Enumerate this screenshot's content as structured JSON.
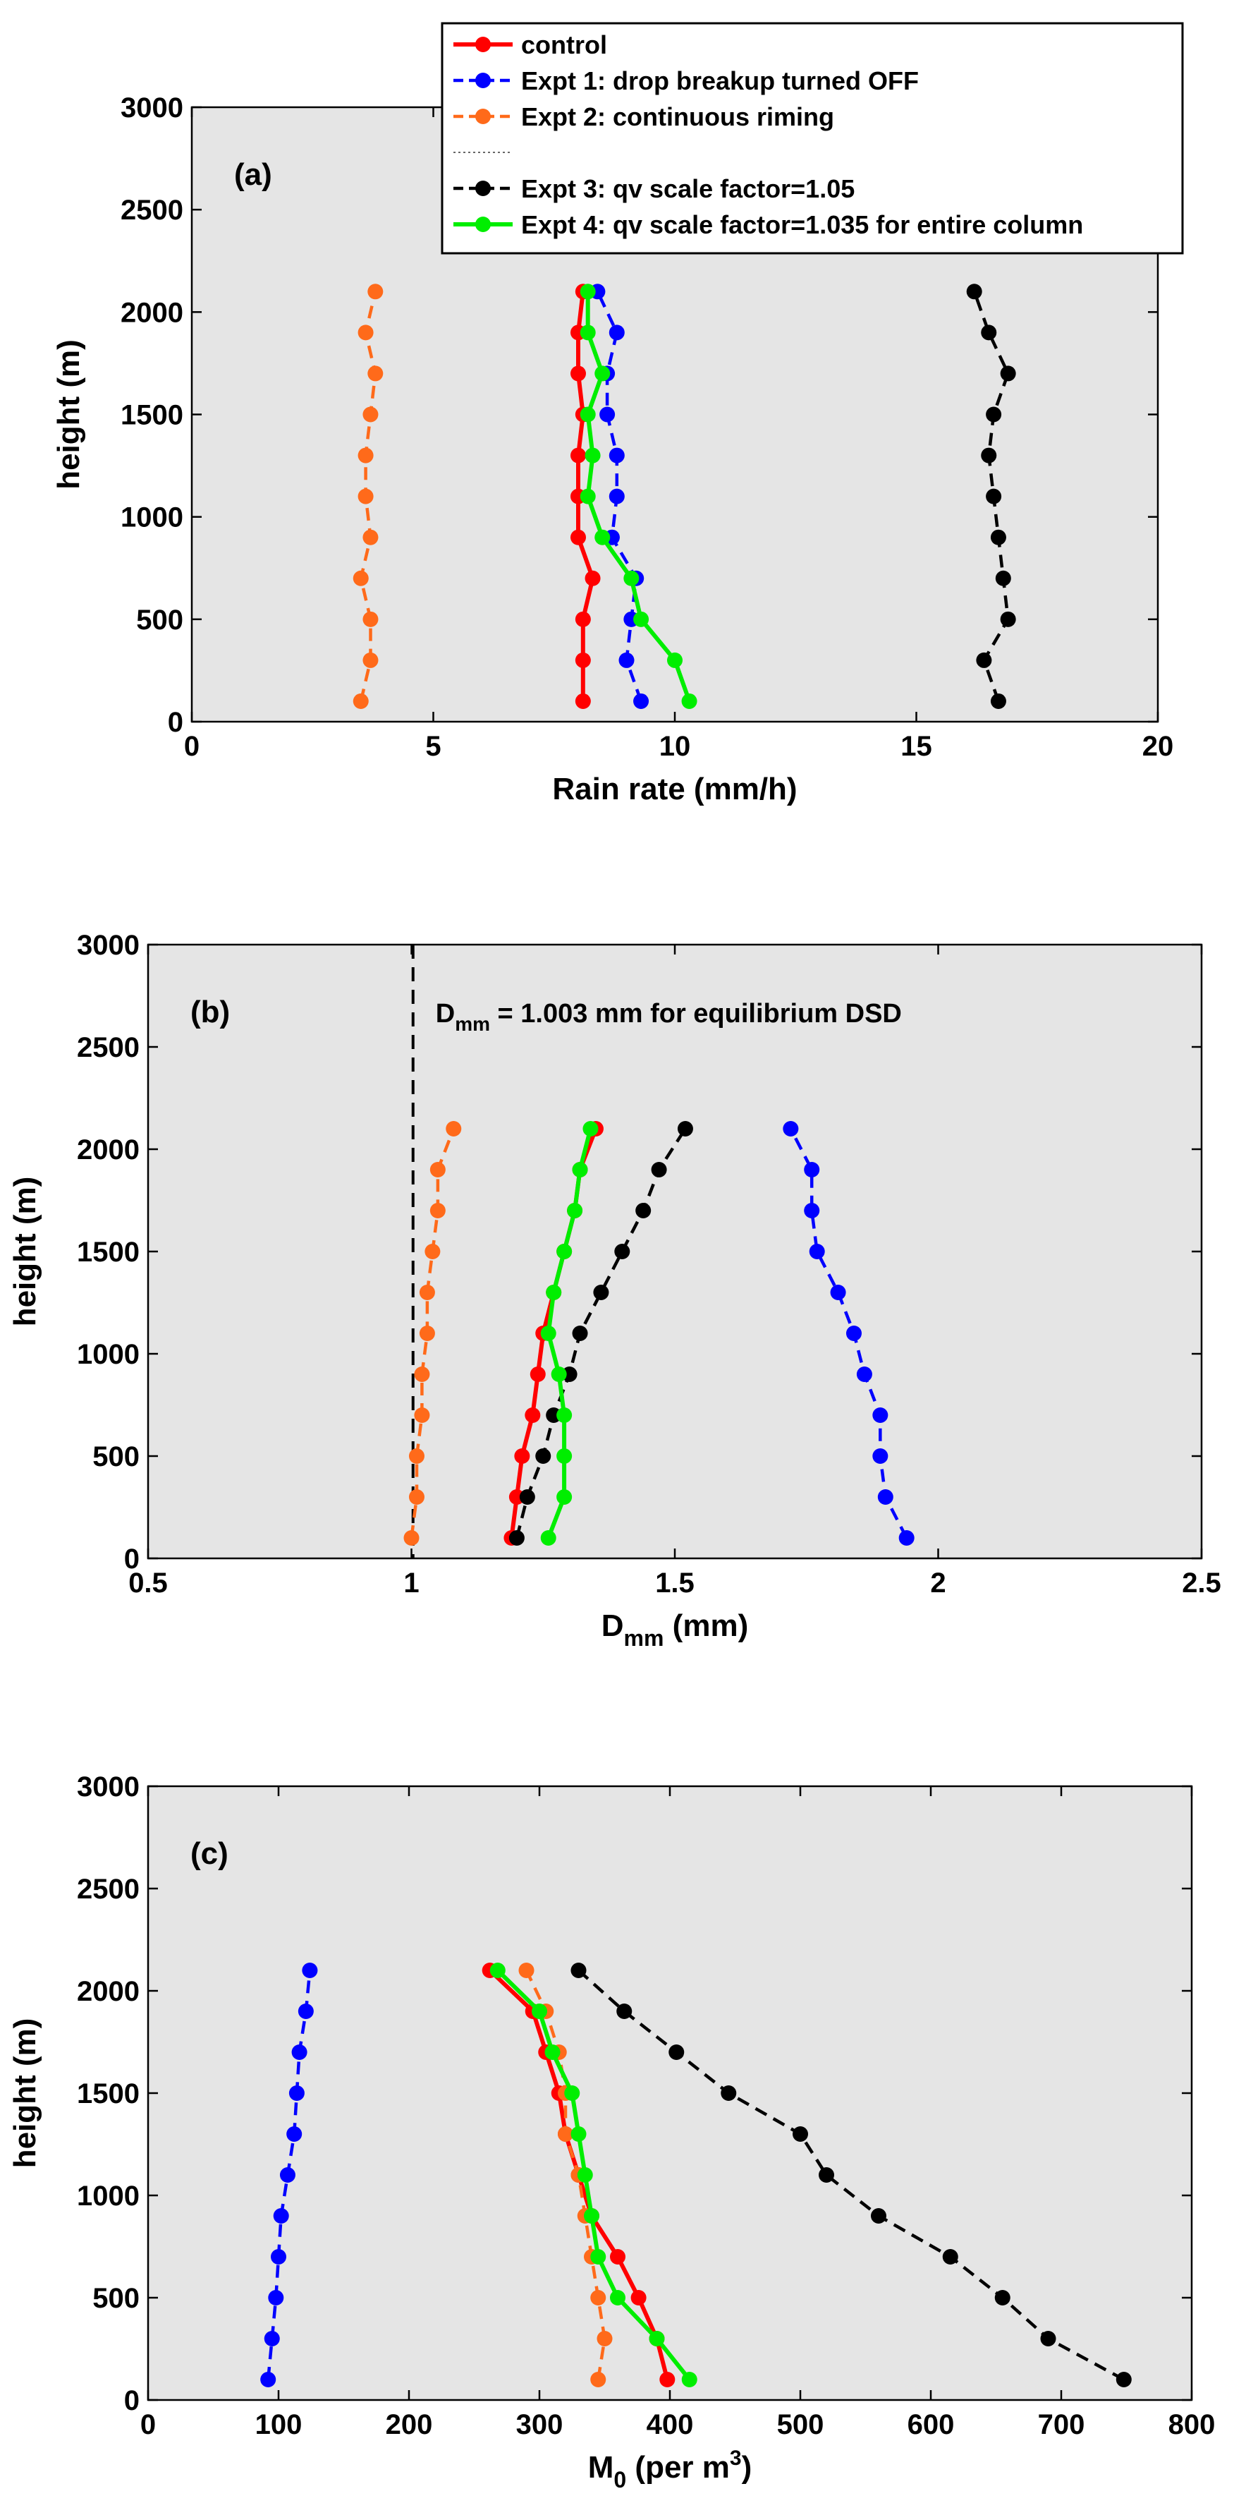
{
  "figure": "three-panel vertical profile chart",
  "series_styles": [
    {
      "name": "control",
      "color": "#ff0000",
      "dash": "solid"
    },
    {
      "name": "Expt 1: drop breakup turned OFF",
      "color": "#0000ff",
      "dash": "dashed"
    },
    {
      "name": "Expt 2: continuous riming",
      "color": "#ff6a1a",
      "dash": "dashed"
    },
    {
      "name": "Expt 3: qv scale factor=1.05",
      "color": "#000000",
      "dash": "dashed"
    },
    {
      "name": "Expt 4: qv scale factor=1.035 for entire column",
      "color": "#00ee00",
      "dash": "solid"
    }
  ],
  "legend": {
    "entries": [
      "control",
      "Expt 1: drop breakup turned OFF",
      "Expt 2: continuous riming",
      "",
      "Expt 3: qv scale factor=1.05",
      "Expt 4: qv scale factor=1.035 for entire column"
    ]
  },
  "chart_data": [
    {
      "type": "line",
      "panel_label": "(a)",
      "xlabel": "Rain rate (mm/h)",
      "ylabel": "height  (m)",
      "xlim": [
        0,
        20
      ],
      "ylim": [
        0,
        3000
      ],
      "xticks": [
        "0",
        "5",
        "10",
        "15",
        "20"
      ],
      "yticks": [
        "0",
        "500",
        "1000",
        "1500",
        "2000",
        "2500",
        "3000"
      ],
      "heights": [
        100,
        300,
        500,
        700,
        900,
        1100,
        1300,
        1500,
        1700,
        1900,
        2100
      ],
      "series": [
        {
          "name": "control",
          "values": [
            8.1,
            8.1,
            8.1,
            8.3,
            8.0,
            8.0,
            8.0,
            8.1,
            8.0,
            8.0,
            8.1
          ]
        },
        {
          "name": "Expt 1: drop breakup turned OFF",
          "values": [
            9.3,
            9.0,
            9.1,
            9.2,
            8.7,
            8.8,
            8.8,
            8.6,
            8.6,
            8.8,
            8.4
          ]
        },
        {
          "name": "Expt 2: continuous riming",
          "values": [
            3.5,
            3.7,
            3.7,
            3.5,
            3.7,
            3.6,
            3.6,
            3.7,
            3.8,
            3.6,
            3.8
          ]
        },
        {
          "name": "Expt 3: qv scale factor=1.05",
          "values": [
            16.7,
            16.4,
            16.9,
            16.8,
            16.7,
            16.6,
            16.5,
            16.6,
            16.9,
            16.5,
            16.2
          ]
        },
        {
          "name": "Expt 4: qv scale factor=1.035 for entire column",
          "values": [
            10.3,
            10.0,
            9.3,
            9.1,
            8.5,
            8.2,
            8.3,
            8.2,
            8.5,
            8.2,
            8.2
          ]
        }
      ]
    },
    {
      "type": "line",
      "panel_label": "(b)",
      "xlabel": "D",
      "xlabel_sub": "mm",
      "xlabel_unit": "(mm)",
      "ylabel": "height  (m)",
      "xlim": [
        0.5,
        2.5
      ],
      "ylim": [
        0,
        3000
      ],
      "xticks": [
        "0.5",
        "1",
        "1.5",
        "2",
        "2.5"
      ],
      "yticks": [
        "0",
        "500",
        "1000",
        "1500",
        "2000",
        "2500",
        "3000"
      ],
      "reference_line": {
        "x": 1.003,
        "label_main": "D",
        "label_sub": "mm",
        "label_rest": " = 1.003 mm for equilibrium DSD"
      },
      "heights": [
        100,
        300,
        500,
        700,
        900,
        1100,
        1300,
        1500,
        1700,
        1900,
        2100
      ],
      "series": [
        {
          "name": "control",
          "values": [
            1.19,
            1.2,
            1.21,
            1.23,
            1.24,
            1.25,
            1.27,
            1.29,
            1.31,
            1.32,
            1.35
          ]
        },
        {
          "name": "Expt 1: drop breakup turned OFF",
          "values": [
            1.94,
            1.9,
            1.89,
            1.89,
            1.86,
            1.84,
            1.81,
            1.77,
            1.76,
            1.76,
            1.72
          ]
        },
        {
          "name": "Expt 2: continuous riming",
          "values": [
            1.0,
            1.01,
            1.01,
            1.02,
            1.02,
            1.03,
            1.03,
            1.04,
            1.05,
            1.05,
            1.08
          ]
        },
        {
          "name": "Expt 3: qv scale factor=1.05",
          "values": [
            1.2,
            1.22,
            1.25,
            1.27,
            1.3,
            1.32,
            1.36,
            1.4,
            1.44,
            1.47,
            1.52
          ]
        },
        {
          "name": "Expt 4: qv scale factor=1.035 for entire column",
          "values": [
            1.26,
            1.29,
            1.29,
            1.29,
            1.28,
            1.26,
            1.27,
            1.29,
            1.31,
            1.32,
            1.34
          ]
        }
      ]
    },
    {
      "type": "line",
      "panel_label": "(c)",
      "xlabel": "M",
      "xlabel_sub": "0",
      "xlabel_unit": "  (per m",
      "xlabel_sup": "3",
      "xlabel_close": ")",
      "ylabel": "height  (m)",
      "xlim": [
        0,
        800
      ],
      "ylim": [
        0,
        3000
      ],
      "xticks": [
        "0",
        "100",
        "200",
        "300",
        "400",
        "500",
        "600",
        "700",
        "800"
      ],
      "yticks": [
        "0",
        "500",
        "1000",
        "1500",
        "2000",
        "2500",
        "3000"
      ],
      "heights": [
        100,
        300,
        500,
        700,
        900,
        1100,
        1300,
        1500,
        1700,
        1900,
        2100
      ],
      "series": [
        {
          "name": "control",
          "values": [
            398,
            390,
            376,
            360,
            340,
            330,
            320,
            315,
            305,
            295,
            262
          ]
        },
        {
          "name": "Expt 1: drop breakup turned OFF",
          "values": [
            92,
            95,
            98,
            100,
            102,
            107,
            112,
            114,
            116,
            121,
            124
          ]
        },
        {
          "name": "Expt 2: continuous riming",
          "values": [
            345,
            350,
            345,
            340,
            335,
            330,
            320,
            320,
            315,
            305,
            290
          ]
        },
        {
          "name": "Expt 3: qv scale factor=1.05",
          "values": [
            748,
            690,
            655,
            615,
            560,
            520,
            500,
            445,
            405,
            365,
            330
          ]
        },
        {
          "name": "Expt 4: qv scale factor=1.035 for entire column",
          "values": [
            415,
            390,
            360,
            345,
            340,
            335,
            330,
            325,
            310,
            300,
            268
          ]
        }
      ]
    }
  ]
}
